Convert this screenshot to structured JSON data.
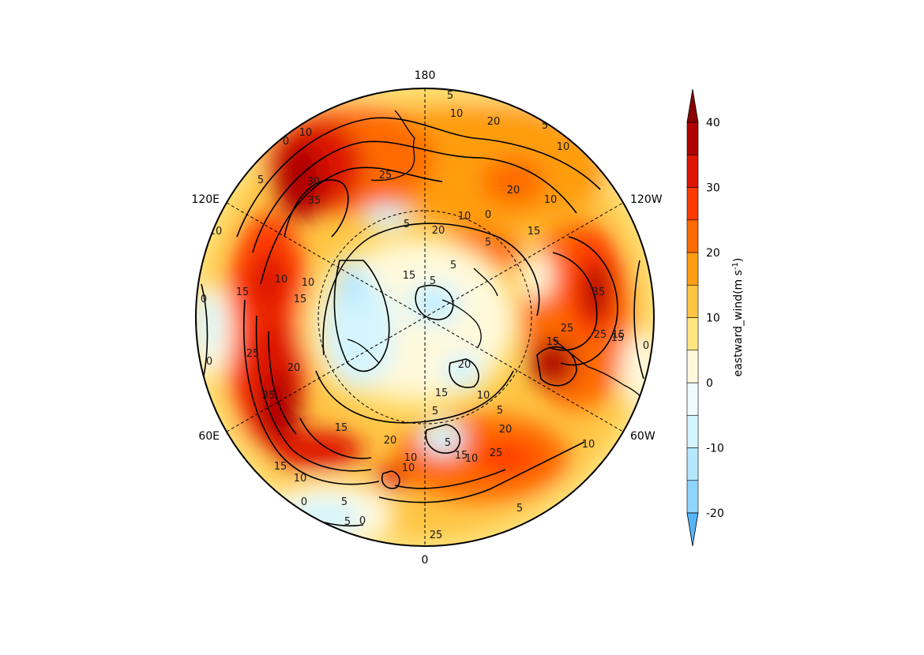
{
  "map": {
    "projection": "north-polar-stereographic",
    "longitude_labels": [
      {
        "text": "180",
        "lon": 180
      },
      {
        "text": "120W",
        "lon": -120
      },
      {
        "text": "60W",
        "lon": -60
      },
      {
        "text": "0",
        "lon": 0
      },
      {
        "text": "60E",
        "lon": 60
      },
      {
        "text": "120E",
        "lon": 120
      }
    ],
    "contour_labels": [
      "5",
      "10",
      "20",
      "5",
      "10",
      "0",
      "10",
      "5",
      "25",
      "30",
      "35",
      "20",
      "10",
      "15",
      "20",
      "5",
      "10",
      "0",
      "5",
      "5",
      "15",
      "10",
      "15",
      "10",
      "0",
      "10",
      "15",
      "25",
      "20",
      "35",
      "15",
      "35",
      "25",
      "25",
      "15",
      "20",
      "5",
      "0",
      "5",
      "15",
      "15",
      "20",
      "10",
      "25",
      "5",
      "10",
      "10",
      "15",
      "5",
      "10",
      "5",
      "0",
      "15",
      "10",
      "5",
      "0",
      "5",
      "25",
      "15",
      "20",
      "10",
      "0"
    ],
    "field": {
      "name": "eastward_wind",
      "units": "m s-1",
      "description_values": "eastward wind speed, m s-1"
    }
  },
  "colorbar": {
    "title": "eastward_wind(m s",
    "title_sup": "-1",
    "title_close": ")",
    "ticks": [
      "40",
      "30",
      "20",
      "10",
      "0",
      "-10",
      "-20"
    ],
    "levels": [
      -20,
      -15,
      -10,
      -5,
      0,
      5,
      10,
      15,
      20,
      25,
      30,
      35,
      40
    ],
    "colors": [
      "#8fd4ff",
      "#b4e8ff",
      "#d4f5ff",
      "#eefcff",
      "#fff9dc",
      "#ffe580",
      "#ffc443",
      "#ff9d10",
      "#ff6a00",
      "#ff3a00",
      "#dd1500",
      "#b00000"
    ],
    "extend_low_color": "#55b5f5",
    "extend_high_color": "#8a0000"
  }
}
